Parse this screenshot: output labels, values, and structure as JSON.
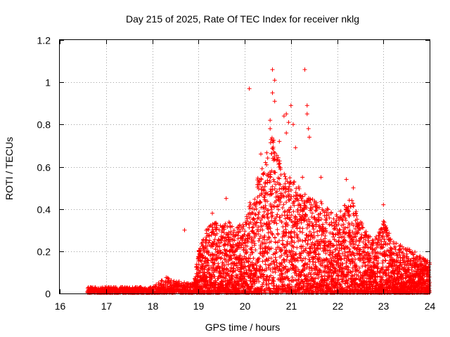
{
  "chart_data": {
    "type": "scatter",
    "title": "Day 215 of 2025, Rate Of TEC Index for receiver nklg",
    "xlabel": "GPS time / hours",
    "ylabel": "ROTI / TECUs",
    "xlim": [
      16,
      24
    ],
    "ylim": [
      0,
      1.2
    ],
    "xticks": [
      "16",
      "17",
      "18",
      "19",
      "20",
      "21",
      "22",
      "23",
      "24"
    ],
    "yticks": [
      "0",
      "0.2",
      "0.4",
      "0.6",
      "0.8",
      "1",
      "1.2"
    ],
    "grid": true,
    "marker": "+",
    "color": "#ff0000",
    "series": [
      {
        "name": "ROTI",
        "envelope": [
          [
            16.6,
            0.03
          ],
          [
            17.0,
            0.03
          ],
          [
            17.5,
            0.03
          ],
          [
            18.0,
            0.03
          ],
          [
            18.3,
            0.08
          ],
          [
            18.5,
            0.06
          ],
          [
            18.9,
            0.05
          ],
          [
            19.0,
            0.2
          ],
          [
            19.2,
            0.32
          ],
          [
            19.5,
            0.35
          ],
          [
            19.8,
            0.33
          ],
          [
            20.0,
            0.35
          ],
          [
            20.2,
            0.5
          ],
          [
            20.4,
            0.62
          ],
          [
            20.6,
            0.75
          ],
          [
            20.8,
            0.6
          ],
          [
            21.0,
            0.55
          ],
          [
            21.2,
            0.5
          ],
          [
            21.4,
            0.45
          ],
          [
            21.6,
            0.45
          ],
          [
            21.8,
            0.4
          ],
          [
            22.0,
            0.38
          ],
          [
            22.3,
            0.45
          ],
          [
            22.6,
            0.3
          ],
          [
            22.8,
            0.25
          ],
          [
            23.0,
            0.35
          ],
          [
            23.2,
            0.25
          ],
          [
            23.5,
            0.22
          ],
          [
            23.8,
            0.18
          ],
          [
            24.0,
            0.15
          ]
        ],
        "outliers": [
          [
            18.7,
            0.3
          ],
          [
            20.1,
            0.97
          ],
          [
            20.6,
            1.06
          ],
          [
            20.65,
            1.01
          ],
          [
            20.6,
            0.95
          ],
          [
            20.65,
            0.91
          ],
          [
            20.55,
            0.82
          ],
          [
            20.75,
            0.72
          ],
          [
            20.85,
            0.84
          ],
          [
            20.9,
            0.85
          ],
          [
            20.95,
            0.81
          ],
          [
            21.0,
            0.89
          ],
          [
            21.05,
            0.8
          ],
          [
            21.3,
            1.06
          ],
          [
            21.35,
            0.89
          ],
          [
            21.35,
            0.85
          ],
          [
            21.38,
            0.78
          ],
          [
            21.4,
            0.74
          ],
          [
            20.9,
            0.76
          ],
          [
            20.55,
            0.78
          ],
          [
            20.45,
            0.62
          ],
          [
            20.35,
            0.66
          ],
          [
            21.1,
            0.69
          ],
          [
            21.25,
            0.55
          ],
          [
            21.65,
            0.55
          ],
          [
            22.2,
            0.54
          ],
          [
            22.35,
            0.5
          ],
          [
            23.0,
            0.42
          ],
          [
            19.6,
            0.45
          ],
          [
            19.3,
            0.38
          ]
        ]
      }
    ]
  }
}
